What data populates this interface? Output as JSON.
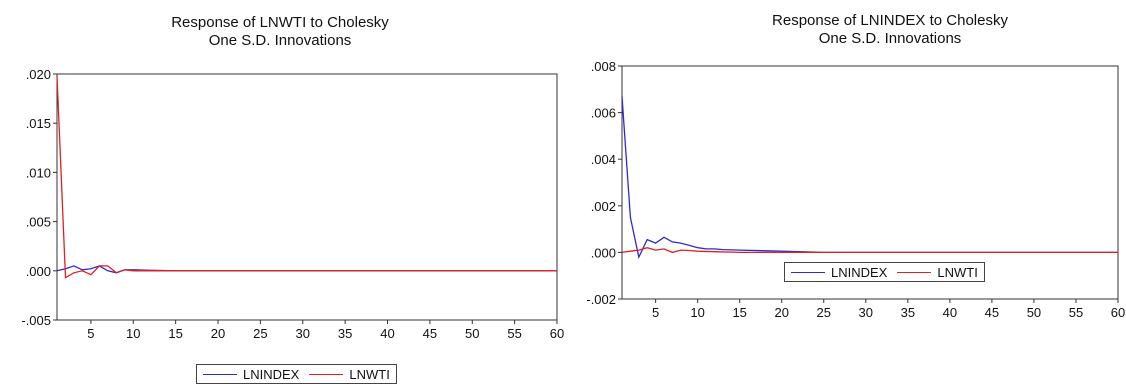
{
  "colors": {
    "LNINDEX": "#2b2bd6",
    "LNWTI": "#e02020"
  },
  "chart_data": [
    {
      "type": "line",
      "title": "Response of LNWTI to Cholesky",
      "subtitle": "One S.D. Innovations",
      "xlim": [
        1,
        60
      ],
      "ylim": [
        -0.005,
        0.02
      ],
      "xticks": [
        5,
        10,
        15,
        20,
        25,
        30,
        35,
        40,
        45,
        50,
        55,
        60
      ],
      "xtick_labels": [
        "5",
        "10",
        "15",
        "20",
        "25",
        "30",
        "35",
        "40",
        "45",
        "50",
        "55",
        "60"
      ],
      "yticks": [
        -0.005,
        0.0,
        0.005,
        0.01,
        0.015,
        0.02
      ],
      "ytick_labels": [
        "-.005",
        ".000",
        ".005",
        ".010",
        ".015",
        ".020"
      ],
      "legend": [
        "LNINDEX",
        "LNWTI"
      ],
      "series": [
        {
          "name": "LNINDEX",
          "color_key": "LNINDEX",
          "x": [
            1,
            2,
            3,
            4,
            5,
            6,
            7,
            8,
            9,
            10,
            12,
            15,
            20,
            30,
            40,
            50,
            60
          ],
          "y": [
            0.0,
            0.0002,
            0.0005,
            0.0001,
            0.0002,
            0.0005,
            0.0,
            -0.0002,
            0.0001,
            0.0001,
            5e-05,
            0.0,
            0.0,
            0.0,
            0.0,
            0.0,
            0.0
          ]
        },
        {
          "name": "LNWTI",
          "color_key": "LNWTI",
          "x": [
            1,
            2,
            3,
            4,
            5,
            6,
            7,
            8,
            9,
            10,
            12,
            15,
            20,
            30,
            40,
            50,
            60
          ],
          "y": [
            0.0198,
            -0.0007,
            -0.0002,
            0.0,
            -0.0004,
            0.0005,
            0.0005,
            -0.0002,
            0.0001,
            0.0,
            0.0,
            0.0,
            0.0,
            0.0,
            0.0,
            0.0,
            0.0
          ]
        }
      ]
    },
    {
      "type": "line",
      "title": "Response of LNINDEX to Cholesky",
      "subtitle": "One S.D. Innovations",
      "xlim": [
        1,
        60
      ],
      "ylim": [
        -0.002,
        0.008
      ],
      "xticks": [
        5,
        10,
        15,
        20,
        25,
        30,
        35,
        40,
        45,
        50,
        55,
        60
      ],
      "xtick_labels": [
        "5",
        "10",
        "15",
        "20",
        "25",
        "30",
        "35",
        "40",
        "45",
        "50",
        "55",
        "60"
      ],
      "yticks": [
        -0.002,
        0.0,
        0.002,
        0.004,
        0.006,
        0.008
      ],
      "ytick_labels": [
        "-.002",
        ".000",
        ".002",
        ".004",
        ".006",
        ".008"
      ],
      "legend": [
        "LNINDEX",
        "LNWTI"
      ],
      "series": [
        {
          "name": "LNINDEX",
          "color_key": "LNINDEX",
          "x": [
            1,
            2,
            3,
            4,
            5,
            6,
            7,
            8,
            9,
            10,
            11,
            12,
            13,
            15,
            20,
            25,
            30,
            40,
            50,
            60
          ],
          "y": [
            0.0067,
            0.0015,
            -0.0002,
            0.00055,
            0.0004,
            0.00065,
            0.00045,
            0.0004,
            0.0003,
            0.0002,
            0.00015,
            0.00015,
            0.00012,
            0.0001,
            5e-05,
            0.0,
            0.0,
            0.0,
            0.0,
            0.0
          ]
        },
        {
          "name": "LNWTI",
          "color_key": "LNWTI",
          "x": [
            1,
            2,
            3,
            4,
            5,
            6,
            7,
            8,
            9,
            10,
            12,
            15,
            20,
            30,
            40,
            50,
            60
          ],
          "y": [
            0.0,
            5e-05,
            0.0001,
            0.0002,
            0.0001,
            0.00015,
            0.0,
            0.0001,
            8e-05,
            5e-05,
            3e-05,
            0.0,
            0.0,
            0.0,
            0.0,
            0.0,
            0.0
          ]
        }
      ]
    }
  ]
}
